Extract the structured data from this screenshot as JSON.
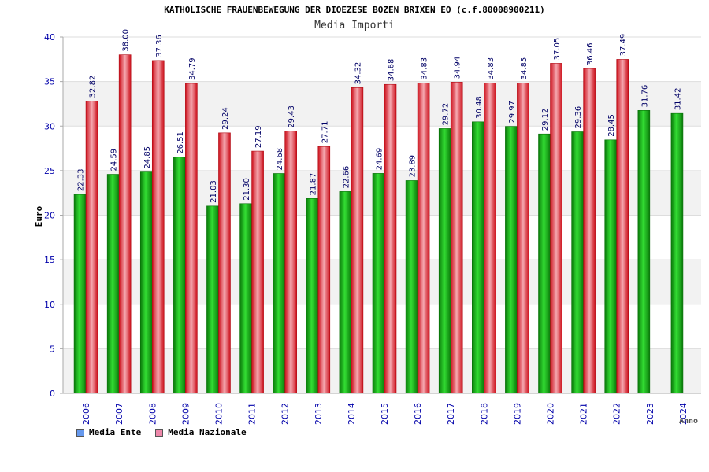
{
  "chart_data": {
    "type": "bar",
    "title": "KATHOLISCHE FRAUENBEWEGUNG DER DIOEZESE BOZEN BRIXEN EO (c.f.80008900211)",
    "subtitle": "Media Importi",
    "ylabel": "Euro",
    "xlabel": "Anno",
    "ylim": [
      0,
      40
    ],
    "yticks": [
      0,
      5,
      10,
      15,
      20,
      25,
      30,
      35,
      40
    ],
    "grid": true,
    "legend_position": "bottom-left",
    "categories": [
      "2006",
      "2007",
      "2008",
      "2009",
      "2010",
      "2011",
      "2012",
      "2013",
      "2014",
      "2015",
      "2016",
      "2017",
      "2018",
      "2019",
      "2020",
      "2021",
      "2022",
      "2023",
      "2024"
    ],
    "series": [
      {
        "name": "Media Ente",
        "color": "#11aa11",
        "legend_color": "#6699ee",
        "values": [
          22.33,
          24.59,
          24.85,
          26.51,
          21.03,
          21.3,
          24.68,
          21.87,
          22.66,
          24.69,
          23.89,
          29.72,
          30.48,
          29.97,
          29.12,
          29.36,
          28.45,
          31.76,
          31.42
        ],
        "labels": [
          "22.33",
          "24.59",
          "24.85",
          "26.51",
          "21.03",
          "21.30",
          "24.68",
          "21.87",
          "22.66",
          "24.69",
          "23.89",
          "29.72",
          "30.48",
          "29.97",
          "29.12",
          "29.36",
          "28.45",
          "31.76",
          "31.42"
        ]
      },
      {
        "name": "Media Nazionale",
        "color": "#ee2222",
        "legend_color": "#ee88aa",
        "values": [
          32.82,
          38.0,
          37.36,
          34.79,
          29.24,
          27.19,
          29.43,
          27.71,
          34.32,
          34.68,
          34.83,
          34.94,
          34.83,
          34.85,
          37.05,
          36.46,
          37.49,
          null,
          null
        ],
        "labels": [
          "32.82",
          "38.00",
          "37.36",
          "34.79",
          "29.24",
          "27.19",
          "29.43",
          "27.71",
          "34.32",
          "34.68",
          "34.83",
          "34.94",
          "34.83",
          "34.85",
          "37.05",
          "36.46",
          "37.49",
          "",
          ""
        ]
      }
    ]
  }
}
